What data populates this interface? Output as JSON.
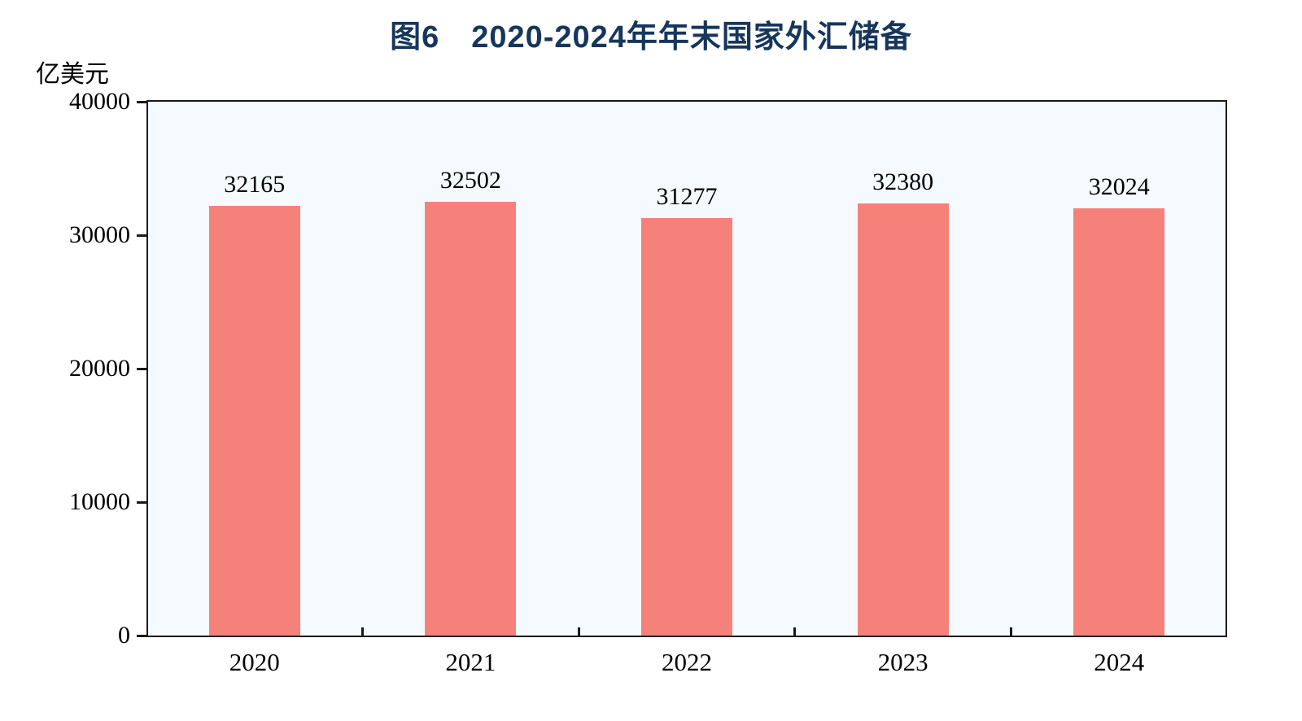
{
  "chart_data": {
    "type": "bar",
    "title": "图6　2020-2024年年末国家外汇储备",
    "ylabel": "亿美元",
    "xlabel": "",
    "categories": [
      "2020",
      "2021",
      "2022",
      "2023",
      "2024"
    ],
    "values": [
      32165,
      32502,
      31277,
      32380,
      32024
    ],
    "value_labels": [
      "32165",
      "32502",
      "31277",
      "32380",
      "32024"
    ],
    "ylim": [
      0,
      40000
    ],
    "yticks": [
      0,
      10000,
      20000,
      30000,
      40000
    ],
    "ytick_labels": [
      "0",
      "10000",
      "20000",
      "30000",
      "40000"
    ],
    "grid": "off",
    "legend": "none",
    "colors": {
      "bar": "#f6817b",
      "plot_background": "#f4fafd",
      "title": "#16365c",
      "axis": "#1a1a1a",
      "text": "#000000"
    }
  }
}
